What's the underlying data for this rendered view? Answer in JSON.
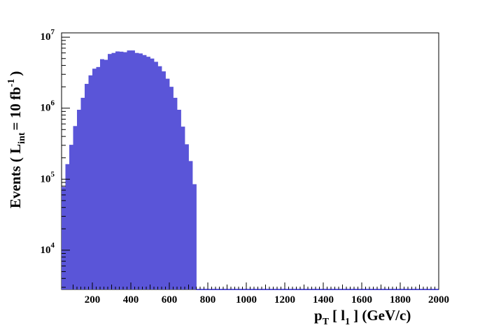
{
  "chart_data": {
    "type": "bar",
    "xlabel": {
      "p": "p",
      "p_sub": "T",
      "open": "[ l",
      "l_sub": "1",
      "close": "] (GeV/c)"
    },
    "ylabel": {
      "main": "Events  ( L",
      "sub": "int",
      "eq": "= 10 fb",
      "sup": "-1",
      "close": ")"
    },
    "xlim": [
      40,
      2000
    ],
    "ylim": [
      2800,
      11500000
    ],
    "yscale": "log",
    "bin_width": 20,
    "bin_start": 40,
    "xticks": [
      200,
      400,
      600,
      800,
      1000,
      1200,
      1400,
      1600,
      1800,
      2000
    ],
    "xtick_labels": [
      "200",
      "400",
      "600",
      "800",
      "1000",
      "1200",
      "1400",
      "1600",
      "1800",
      "2000"
    ],
    "yticks": [
      10000,
      100000,
      1000000,
      10000000
    ],
    "ytick_labels": [
      {
        "base": "10",
        "exp": "4"
      },
      {
        "base": "10",
        "exp": "5"
      },
      {
        "base": "10",
        "exp": "6"
      },
      {
        "base": "10",
        "exp": "7"
      }
    ],
    "fill_color": "#5a55d8",
    "values": [
      78000,
      163000,
      305000,
      560000,
      950000,
      1400000,
      2200000,
      2900000,
      3600000,
      3800000,
      4900000,
      4800000,
      5800000,
      6000000,
      6300000,
      6250000,
      6150000,
      6500000,
      6500000,
      6000000,
      5900000,
      5600000,
      5300000,
      5000000,
      4500000,
      3900000,
      3300000,
      2600000,
      2000000,
      1400000,
      950000,
      550000,
      310000,
      180000,
      85000
    ]
  }
}
